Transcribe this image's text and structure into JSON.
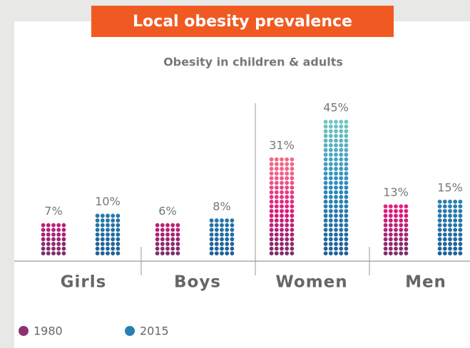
{
  "chart_data": {
    "type": "dot-column",
    "title": "Local obesity prevalence",
    "subtitle": "Obesity in children & adults",
    "categories": [
      "Girls",
      "Boys",
      "Women",
      "Men"
    ],
    "series": [
      {
        "name": "1980",
        "color": "#8e3173",
        "values": [
          7,
          6,
          31,
          13
        ],
        "value_labels": [
          "7%",
          "6%",
          "31%",
          "13%"
        ]
      },
      {
        "name": "2015",
        "color": "#2a7fb0",
        "values": [
          10,
          8,
          45,
          15
        ],
        "value_labels": [
          "10%",
          "8%",
          "45%",
          "15%"
        ]
      }
    ],
    "legend": "bottom-left"
  }
}
